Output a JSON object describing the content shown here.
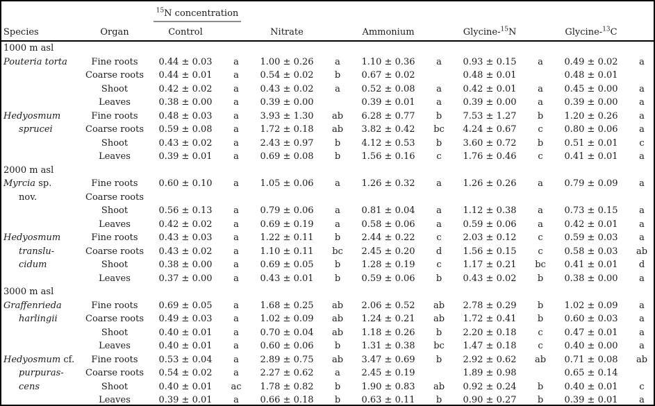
{
  "colors": {
    "text": "#1a1a1a",
    "frame": "#000000",
    "spanner_rule": "#8a8a8a",
    "background": "#ffffff"
  },
  "table": {
    "spanner": {
      "pre": "",
      "sup": "15",
      "post": "N concentration"
    },
    "columns": [
      {
        "label": "Species"
      },
      {
        "label": "Organ"
      },
      {
        "label": "Control"
      },
      {
        "label": "Nitrate"
      },
      {
        "label": "Ammonium"
      },
      {
        "pre": "Glycine-",
        "sup": "15",
        "post": "N"
      },
      {
        "pre": "Glycine-",
        "sup": "13",
        "post": "C"
      }
    ],
    "sections": [
      {
        "altitude": "1000 m asl",
        "species_groups": [
          {
            "name_lines": [
              {
                "ind": false,
                "segs": [
                  {
                    "t": "Pouteria torta",
                    "i": true
                  }
                ]
              }
            ],
            "rows": [
              {
                "organ": "Fine roots",
                "cells": [
                  [
                    "0.44 ± 0.03",
                    "a"
                  ],
                  [
                    "1.00 ± 0.26",
                    "a"
                  ],
                  [
                    "1.10 ± 0.36",
                    "a"
                  ],
                  [
                    "0.93 ± 0.15",
                    "a"
                  ],
                  [
                    "0.49 ± 0.02",
                    "a"
                  ]
                ]
              },
              {
                "organ": "Coarse roots",
                "cells": [
                  [
                    "0.44 ± 0.01",
                    "a"
                  ],
                  [
                    "0.54 ± 0.02",
                    "b"
                  ],
                  [
                    "0.67 ± 0.02",
                    ""
                  ],
                  [
                    "0.48 ± 0.01",
                    ""
                  ],
                  [
                    "0.48 ± 0.01",
                    ""
                  ]
                ]
              },
              {
                "organ": "Shoot",
                "cells": [
                  [
                    "0.42 ± 0.02",
                    "a"
                  ],
                  [
                    "0.43 ± 0.02",
                    "a"
                  ],
                  [
                    "0.52 ± 0.08",
                    "a"
                  ],
                  [
                    "0.42 ± 0.01",
                    "a"
                  ],
                  [
                    "0.45 ± 0.00",
                    "a"
                  ]
                ]
              },
              {
                "organ": "Leaves",
                "cells": [
                  [
                    "0.38 ± 0.00",
                    "a"
                  ],
                  [
                    "0.39 ± 0.00",
                    ""
                  ],
                  [
                    "0.39 ± 0.01",
                    "a"
                  ],
                  [
                    "0.39 ± 0.00",
                    "a"
                  ],
                  [
                    "0.39 ± 0.00",
                    "a"
                  ]
                ]
              }
            ]
          },
          {
            "name_lines": [
              {
                "ind": false,
                "segs": [
                  {
                    "t": "Hedyosmum",
                    "i": true
                  }
                ]
              },
              {
                "ind": true,
                "segs": [
                  {
                    "t": "sprucei",
                    "i": true
                  }
                ]
              }
            ],
            "rows": [
              {
                "organ": "Fine roots",
                "cells": [
                  [
                    "0.48 ± 0.03",
                    "a"
                  ],
                  [
                    "3.93 ± 1.30",
                    "ab"
                  ],
                  [
                    "6.28 ± 0.77",
                    "b"
                  ],
                  [
                    "7.53 ± 1.27",
                    "b"
                  ],
                  [
                    "1.20 ± 0.26",
                    "a"
                  ]
                ]
              },
              {
                "organ": "Coarse roots",
                "cells": [
                  [
                    "0.59 ± 0.08",
                    "a"
                  ],
                  [
                    "1.72 ± 0.18",
                    "ab"
                  ],
                  [
                    "3.82 ± 0.42",
                    "bc"
                  ],
                  [
                    "4.24 ± 0.67",
                    "c"
                  ],
                  [
                    "0.80 ± 0.06",
                    "a"
                  ]
                ]
              },
              {
                "organ": "Shoot",
                "cells": [
                  [
                    "0.43 ± 0.02",
                    "a"
                  ],
                  [
                    "2.43 ± 0.97",
                    "b"
                  ],
                  [
                    "4.12 ± 0.53",
                    "b"
                  ],
                  [
                    "3.60 ± 0.72",
                    "b"
                  ],
                  [
                    "0.51 ± 0.01",
                    "c"
                  ]
                ]
              },
              {
                "organ": "Leaves",
                "cells": [
                  [
                    "0.39 ± 0.01",
                    "a"
                  ],
                  [
                    "0.69 ± 0.08",
                    "b"
                  ],
                  [
                    "1.56 ± 0.16",
                    "c"
                  ],
                  [
                    "1.76 ± 0.46",
                    "c"
                  ],
                  [
                    "0.41 ± 0.01",
                    "a"
                  ]
                ]
              }
            ]
          }
        ]
      },
      {
        "altitude": "2000 m asl",
        "species_groups": [
          {
            "name_lines": [
              {
                "ind": false,
                "segs": [
                  {
                    "t": "Myrcia",
                    "i": true
                  },
                  {
                    "t": " sp.",
                    "i": false
                  }
                ]
              },
              {
                "ind": true,
                "segs": [
                  {
                    "t": "nov.",
                    "i": false
                  }
                ]
              }
            ],
            "rows": [
              {
                "organ": "Fine roots",
                "cells": [
                  [
                    "0.60 ± 0.10",
                    "a"
                  ],
                  [
                    "1.05 ± 0.06",
                    "a"
                  ],
                  [
                    "1.26 ± 0.32",
                    "a"
                  ],
                  [
                    "1.26 ± 0.26",
                    "a"
                  ],
                  [
                    "0.79 ± 0.09",
                    "a"
                  ]
                ]
              },
              {
                "organ": "Coarse roots",
                "cells": [
                  [
                    "",
                    ""
                  ],
                  [
                    "",
                    ""
                  ],
                  [
                    "",
                    ""
                  ],
                  [
                    "",
                    ""
                  ],
                  [
                    "",
                    ""
                  ]
                ]
              },
              {
                "organ": "Shoot",
                "cells": [
                  [
                    "0.56 ± 0.13",
                    "a"
                  ],
                  [
                    "0.79 ± 0.06",
                    "a"
                  ],
                  [
                    "0.81 ± 0.04",
                    "a"
                  ],
                  [
                    "1.12 ± 0.38",
                    "a"
                  ],
                  [
                    "0.73 ± 0.15",
                    "a"
                  ]
                ]
              },
              {
                "organ": "Leaves",
                "cells": [
                  [
                    "0.42 ± 0.02",
                    "a"
                  ],
                  [
                    "0.69 ± 0.19",
                    "a"
                  ],
                  [
                    "0.58 ± 0.06",
                    "a"
                  ],
                  [
                    "0.59 ± 0.06",
                    "a"
                  ],
                  [
                    "0.42 ± 0.01",
                    "a"
                  ]
                ]
              }
            ]
          },
          {
            "name_lines": [
              {
                "ind": false,
                "segs": [
                  {
                    "t": "Hedyosmum",
                    "i": true
                  }
                ]
              },
              {
                "ind": true,
                "segs": [
                  {
                    "t": "translu-",
                    "i": true
                  }
                ]
              },
              {
                "ind": true,
                "segs": [
                  {
                    "t": "cidum",
                    "i": true
                  }
                ]
              }
            ],
            "rows": [
              {
                "organ": "Fine roots",
                "cells": [
                  [
                    "0.43 ± 0.03",
                    "a"
                  ],
                  [
                    "1.22 ± 0.11",
                    "b"
                  ],
                  [
                    "2.44 ± 0.22",
                    "c"
                  ],
                  [
                    "2.03 ± 0.12",
                    "c"
                  ],
                  [
                    "0.59 ± 0.03",
                    "a"
                  ]
                ]
              },
              {
                "organ": "Coarse roots",
                "cells": [
                  [
                    "0.43 ± 0.02",
                    "a"
                  ],
                  [
                    "1.10 ± 0.11",
                    "bc"
                  ],
                  [
                    "2.45 ± 0.20",
                    "d"
                  ],
                  [
                    "1.56 ± 0.15",
                    "c"
                  ],
                  [
                    "0.58 ± 0.03",
                    "ab"
                  ]
                ]
              },
              {
                "organ": "Shoot",
                "cells": [
                  [
                    "0.38 ± 0.00",
                    "a"
                  ],
                  [
                    "0.69 ± 0.05",
                    "b"
                  ],
                  [
                    "1.28 ± 0.19",
                    "c"
                  ],
                  [
                    "1.17 ± 0.21",
                    "bc"
                  ],
                  [
                    "0.41 ± 0.01",
                    "d"
                  ]
                ]
              },
              {
                "organ": "Leaves",
                "cells": [
                  [
                    "0.37 ± 0.00",
                    "a"
                  ],
                  [
                    "0.43 ± 0.01",
                    "b"
                  ],
                  [
                    "0.59 ± 0.06",
                    "b"
                  ],
                  [
                    "0.43 ± 0.02",
                    "b"
                  ],
                  [
                    "0.38 ± 0.00",
                    "a"
                  ]
                ]
              }
            ]
          }
        ]
      },
      {
        "altitude": "3000 m asl",
        "species_groups": [
          {
            "name_lines": [
              {
                "ind": false,
                "segs": [
                  {
                    "t": "Graffenrieda",
                    "i": true
                  }
                ]
              },
              {
                "ind": true,
                "segs": [
                  {
                    "t": "harlingii",
                    "i": true
                  }
                ]
              }
            ],
            "rows": [
              {
                "organ": "Fine roots",
                "cells": [
                  [
                    "0.69 ± 0.05",
                    "a"
                  ],
                  [
                    "1.68 ± 0.25",
                    "ab"
                  ],
                  [
                    "2.06 ± 0.52",
                    "ab"
                  ],
                  [
                    "2.78 ± 0.29",
                    "b"
                  ],
                  [
                    "1.02 ± 0.09",
                    "a"
                  ]
                ]
              },
              {
                "organ": "Coarse roots",
                "cells": [
                  [
                    "0.49 ± 0.03",
                    "a"
                  ],
                  [
                    "1.02 ± 0.09",
                    "ab"
                  ],
                  [
                    "1.24 ± 0.21",
                    "ab"
                  ],
                  [
                    "1.72 ± 0.41",
                    "b"
                  ],
                  [
                    "0.60 ± 0.03",
                    "a"
                  ]
                ]
              },
              {
                "organ": "Shoot",
                "cells": [
                  [
                    "0.40 ± 0.01",
                    "a"
                  ],
                  [
                    "0.70 ± 0.04",
                    "ab"
                  ],
                  [
                    "1.18 ± 0.26",
                    "b"
                  ],
                  [
                    "2.20 ± 0.18",
                    "c"
                  ],
                  [
                    "0.47 ± 0.01",
                    "a"
                  ]
                ]
              },
              {
                "organ": "Leaves",
                "cells": [
                  [
                    "0.40 ± 0.01",
                    "a"
                  ],
                  [
                    "0.60 ± 0.06",
                    "b"
                  ],
                  [
                    "1.31 ± 0.38",
                    "bc"
                  ],
                  [
                    "1.47 ± 0.18",
                    "c"
                  ],
                  [
                    "0.40 ± 0.00",
                    "a"
                  ]
                ]
              }
            ]
          },
          {
            "name_lines": [
              {
                "ind": false,
                "segs": [
                  {
                    "t": "Hedyosmum",
                    "i": true
                  },
                  {
                    "t": " cf.",
                    "i": false
                  }
                ]
              },
              {
                "ind": true,
                "segs": [
                  {
                    "t": "purpuras-",
                    "i": true
                  }
                ]
              },
              {
                "ind": true,
                "segs": [
                  {
                    "t": "cens",
                    "i": true
                  }
                ]
              }
            ],
            "rows": [
              {
                "organ": "Fine roots",
                "cells": [
                  [
                    "0.53 ± 0.04",
                    "a"
                  ],
                  [
                    "2.89 ± 0.75",
                    "ab"
                  ],
                  [
                    "3.47 ± 0.69",
                    "b"
                  ],
                  [
                    "2.92 ± 0.62",
                    "ab"
                  ],
                  [
                    "0.71 ± 0.08",
                    "ab"
                  ]
                ]
              },
              {
                "organ": "Coarse roots",
                "cells": [
                  [
                    "0.54 ± 0.02",
                    "a"
                  ],
                  [
                    "2.27 ± 0.62",
                    "a"
                  ],
                  [
                    "2.45 ± 0.19",
                    ""
                  ],
                  [
                    "1.89 ± 0.98",
                    ""
                  ],
                  [
                    "0.65 ± 0.14",
                    ""
                  ]
                ]
              },
              {
                "organ": "Shoot",
                "cells": [
                  [
                    "0.40 ± 0.01",
                    "ac"
                  ],
                  [
                    "1.78 ± 0.82",
                    "b"
                  ],
                  [
                    "1.90 ± 0.83",
                    "ab"
                  ],
                  [
                    "0.92 ± 0.24",
                    "b"
                  ],
                  [
                    "0.40 ± 0.01",
                    "c"
                  ]
                ]
              },
              {
                "organ": "Leaves",
                "cells": [
                  [
                    "0.39 ± 0.01",
                    "a"
                  ],
                  [
                    "0.66 ± 0.18",
                    "b"
                  ],
                  [
                    "0.63 ± 0.11",
                    "b"
                  ],
                  [
                    "0.90 ± 0.27",
                    "b"
                  ],
                  [
                    "0.39 ± 0.01",
                    "a"
                  ]
                ]
              }
            ]
          }
        ]
      }
    ]
  }
}
